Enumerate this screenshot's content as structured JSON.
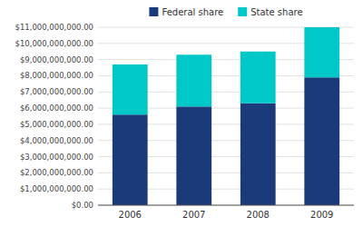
{
  "chart_data": {
    "type": "bar",
    "stacked": true,
    "categories": [
      "2006",
      "2007",
      "2008",
      "2009"
    ],
    "series": [
      {
        "name": "Federal share",
        "color": "#1a3a7a",
        "values": [
          5600000000,
          6100000000,
          6300000000,
          7900000000
        ]
      },
      {
        "name": "State share",
        "color": "#00c8c8",
        "values": [
          3100000000,
          3200000000,
          3200000000,
          3100000000
        ]
      }
    ],
    "ylim": [
      0,
      11000000000
    ],
    "yticks": [
      {
        "value": 0,
        "label": "$0.00"
      },
      {
        "value": 1000000000,
        "label": "$1,000,000,000.00"
      },
      {
        "value": 2000000000,
        "label": "$2,000,000,000.00"
      },
      {
        "value": 3000000000,
        "label": "$3,000,000,000.00"
      },
      {
        "value": 4000000000,
        "label": "$4,000,000,000.00"
      },
      {
        "value": 5000000000,
        "label": "$5,000,000,000.00"
      },
      {
        "value": 6000000000,
        "label": "$6,000,000,000.00"
      },
      {
        "value": 7000000000,
        "label": "$7,000,000,000.00"
      },
      {
        "value": 8000000000,
        "label": "$8,000,000,000.00"
      },
      {
        "value": 9000000000,
        "label": "$9,000,000,000.00"
      },
      {
        "value": 10000000000,
        "label": "$10,000,000,000.00"
      },
      {
        "value": 11000000000,
        "label": "$11,000,000,000.00"
      }
    ],
    "grid": true,
    "legend": "top"
  }
}
